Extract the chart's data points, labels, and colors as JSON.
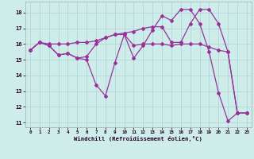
{
  "background_color": "#cdecea",
  "grid_color": "#b0d8d5",
  "line_color": "#993399",
  "xlabel": "Windchill (Refroidissement éolien,°C)",
  "ylim": [
    10.7,
    18.7
  ],
  "xlim": [
    -0.5,
    23.5
  ],
  "yticks": [
    11,
    12,
    13,
    14,
    15,
    16,
    17,
    18
  ],
  "xticks": [
    0,
    1,
    2,
    3,
    4,
    5,
    6,
    7,
    8,
    9,
    10,
    11,
    12,
    13,
    14,
    15,
    16,
    17,
    18,
    19,
    20,
    21,
    22,
    23
  ],
  "series1_x": [
    0,
    1,
    2,
    3,
    4,
    5,
    6,
    7,
    8,
    9,
    10,
    11,
    12,
    13,
    14,
    15,
    16,
    17,
    18,
    19,
    20,
    21,
    22,
    23
  ],
  "series1_y": [
    15.6,
    16.1,
    15.9,
    15.3,
    15.4,
    15.1,
    15.0,
    13.4,
    12.7,
    14.8,
    16.6,
    15.1,
    15.9,
    16.9,
    17.8,
    17.5,
    18.2,
    18.2,
    17.3,
    15.5,
    12.9,
    11.1,
    11.6,
    11.6
  ],
  "series2_x": [
    0,
    1,
    2,
    3,
    4,
    5,
    6,
    7,
    8,
    9,
    10,
    11,
    12,
    13,
    14,
    15,
    16,
    17,
    18,
    19,
    20,
    21,
    22,
    23
  ],
  "series2_y": [
    15.6,
    16.1,
    16.0,
    16.0,
    16.0,
    16.1,
    16.1,
    16.2,
    16.4,
    16.6,
    16.7,
    16.8,
    17.0,
    17.1,
    17.1,
    16.1,
    16.1,
    17.3,
    18.2,
    18.2,
    17.3,
    15.5,
    11.6,
    11.6
  ],
  "series3_x": [
    0,
    1,
    2,
    3,
    4,
    5,
    6,
    7,
    8,
    9,
    10,
    11,
    12,
    13,
    14,
    15,
    16,
    17,
    18,
    19,
    20,
    21,
    22,
    23
  ],
  "series3_y": [
    15.6,
    16.1,
    15.9,
    15.3,
    15.4,
    15.1,
    15.2,
    16.0,
    16.4,
    16.6,
    16.6,
    15.9,
    16.0,
    16.0,
    16.0,
    15.9,
    16.0,
    16.0,
    16.0,
    15.8,
    15.6,
    15.5,
    11.6,
    11.6
  ]
}
